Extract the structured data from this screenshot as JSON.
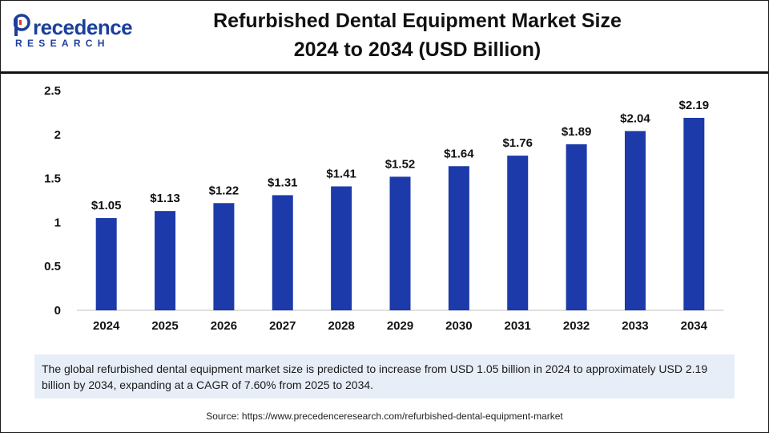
{
  "brand": {
    "name_part_1": "P",
    "name_part_2": "recedence",
    "subtitle": "RESEARCH",
    "logo_color": "#1b3f9c"
  },
  "title_line_1": "Refurbished Dental Equipment Market Size",
  "title_line_2": "2024 to 2034 (USD Billion)",
  "chart_data": {
    "type": "bar",
    "categories": [
      "2024",
      "2025",
      "2026",
      "2027",
      "2028",
      "2029",
      "2030",
      "2031",
      "2032",
      "2033",
      "2034"
    ],
    "values": [
      1.05,
      1.13,
      1.22,
      1.31,
      1.41,
      1.52,
      1.64,
      1.76,
      1.89,
      2.04,
      2.19
    ],
    "data_labels": [
      "$1.05",
      "$1.13",
      "$1.22",
      "$1.31",
      "$1.41",
      "$1.52",
      "$1.64",
      "$1.76",
      "$1.89",
      "$2.04",
      "$2.19"
    ],
    "y_ticks": [
      0,
      0.5,
      1,
      1.5,
      2,
      2.5
    ],
    "y_tick_labels": [
      "0",
      "0.5",
      "1",
      "1.5",
      "2",
      "2.5"
    ],
    "ylim": [
      0,
      2.5
    ],
    "xlabel": "",
    "ylabel": "",
    "grid": false,
    "bar_color": "#1c3aa9",
    "legend": "none"
  },
  "note": "The global refurbished dental equipment market size is predicted to increase from USD 1.05 billion in 2024 to approximately USD 2.19 billion by 2034, expanding at a CAGR of 7.60% from 2025 to 2034.",
  "source": "Source: https://www.precedenceresearch.com/refurbished-dental-equipment-market"
}
